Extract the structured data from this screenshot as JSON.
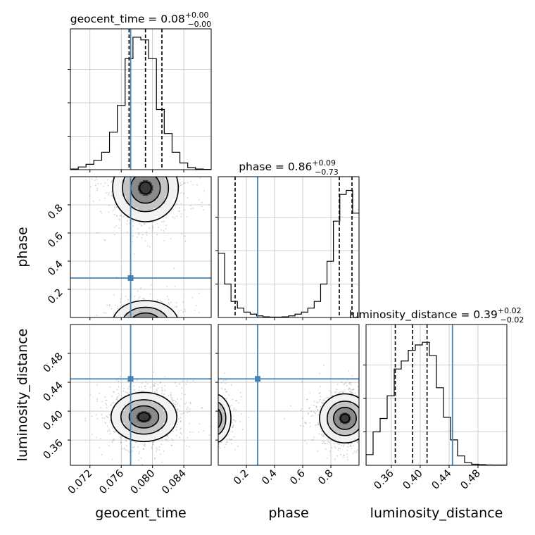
{
  "chart_data": {
    "type": "corner",
    "colors": {
      "truth": "#4682b4",
      "hist": "#000000",
      "grid": "#c0c0c0",
      "quantile": "#000000"
    },
    "parameters": [
      {
        "key": "geocent_time",
        "label": "geocent_time",
        "title_name": "geocent_time",
        "title_value": "0.08",
        "title_plus": "+0.00",
        "title_minus": "−0.00",
        "range": [
          0.0695,
          0.0875
        ],
        "ticks": [
          0.072,
          0.076,
          0.08,
          0.084
        ],
        "tick_labels": [
          "0.072",
          "0.076",
          "0.080",
          "0.084"
        ],
        "truth": 0.0772,
        "quantiles": [
          0.077,
          0.0791,
          0.0812
        ],
        "hist_max": 1.0,
        "hist_ticks": [
          0.25,
          0.5,
          0.75
        ],
        "hist": [
          0.005,
          0.02,
          0.04,
          0.07,
          0.13,
          0.28,
          0.48,
          0.83,
          0.99,
          0.97,
          0.83,
          0.45,
          0.27,
          0.13,
          0.05,
          0.015,
          0.005,
          0.002
        ]
      },
      {
        "key": "phase",
        "label": "phase",
        "title_name": "phase",
        "title_value": "0.86",
        "title_plus": "+0.09",
        "title_minus": "−0.73",
        "range": [
          0.0,
          1.0
        ],
        "ticks": [
          0.2,
          0.4,
          0.6,
          0.8
        ],
        "tick_labels": [
          "0.2",
          "0.4",
          "0.6",
          "0.8"
        ],
        "truth": 0.28,
        "quantiles": [
          0.12,
          0.86,
          0.95
        ],
        "hist_max": 1.0,
        "hist_ticks": [
          0.25,
          0.5,
          0.75
        ],
        "hist": [
          0.48,
          0.25,
          0.12,
          0.07,
          0.04,
          0.025,
          0.012,
          0.005,
          0.003,
          0.003,
          0.005,
          0.012,
          0.025,
          0.04,
          0.07,
          0.12,
          0.25,
          0.42,
          0.72,
          0.92,
          0.95,
          0.78
        ]
      },
      {
        "key": "luminosity_distance",
        "label": "luminosity_distance",
        "title_name": "luminosity_distance",
        "title_value": "0.39",
        "title_plus": "+0.02",
        "title_minus": "−0.02",
        "range": [
          0.325,
          0.52
        ],
        "ticks": [
          0.36,
          0.4,
          0.44,
          0.48
        ],
        "tick_labels": [
          "0.36",
          "0.40",
          "0.44",
          "0.48"
        ],
        "truth": 0.4447,
        "quantiles": [
          0.3655,
          0.3895,
          0.4095
        ],
        "hist_max": 1.0,
        "hist_ticks": [
          0.25,
          0.5,
          0.75
        ],
        "hist": [
          0.08,
          0.25,
          0.35,
          0.52,
          0.72,
          0.78,
          0.86,
          0.9,
          0.92,
          0.82,
          0.58,
          0.36,
          0.19,
          0.07,
          0.02,
          0.008,
          0.005,
          0.003,
          0.002,
          0.002
        ]
      }
    ],
    "density_peaks": [
      {
        "x_param": "geocent_time",
        "y_param": "phase",
        "modes": [
          {
            "x": 0.0791,
            "y": 0.92,
            "sx": 0.0021,
            "sy": 0.12,
            "w": 1.0
          },
          {
            "x": 0.0791,
            "y": -0.04,
            "sx": 0.0021,
            "sy": 0.08,
            "w": 0.45
          }
        ]
      },
      {
        "x_param": "geocent_time",
        "y_param": "luminosity_distance",
        "modes": [
          {
            "x": 0.0789,
            "y": 0.392,
            "sx": 0.0021,
            "sy": 0.017,
            "w": 1.0
          }
        ]
      },
      {
        "x_param": "phase",
        "y_param": "luminosity_distance",
        "modes": [
          {
            "x": 0.9,
            "y": 0.39,
            "sx": 0.09,
            "sy": 0.017,
            "w": 1.0
          },
          {
            "x": -0.03,
            "y": 0.39,
            "sx": 0.06,
            "sy": 0.017,
            "w": 0.55
          }
        ]
      }
    ]
  }
}
